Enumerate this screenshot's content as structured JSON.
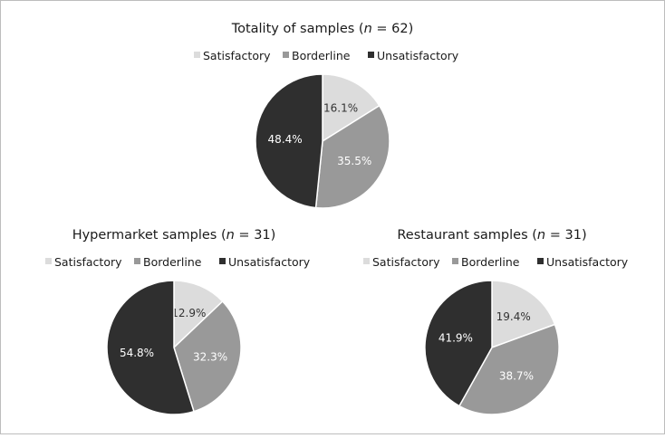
{
  "chart_data": [
    {
      "type": "pie",
      "title": "Totality of samples",
      "n_text": "(n = 62)",
      "n_prefix": "(",
      "n_var": "n",
      "n_suffix": " = 62)",
      "legend_position": "top",
      "slices": [
        {
          "label": "Satisfactory",
          "value": 16.1,
          "value_text": "16.1%",
          "color": "#dcdcdc"
        },
        {
          "label": "Borderline",
          "value": 35.5,
          "value_text": "35.5%",
          "color": "#999999"
        },
        {
          "label": "Unsatisfactory",
          "value": 48.4,
          "value_text": "48.4%",
          "color": "#2f2f2f"
        }
      ]
    },
    {
      "type": "pie",
      "title": "Hypermarket samples",
      "n_text": "(n = 31)",
      "n_prefix": "(",
      "n_var": "n",
      "n_suffix": " = 31)",
      "legend_position": "top",
      "slices": [
        {
          "label": "Satisfactory",
          "value": 12.9,
          "value_text": "12.9%",
          "color": "#dcdcdc"
        },
        {
          "label": "Borderline",
          "value": 32.3,
          "value_text": "32.3%",
          "color": "#999999"
        },
        {
          "label": "Unsatisfactory",
          "value": 54.8,
          "value_text": "54.8%",
          "color": "#2f2f2f"
        }
      ]
    },
    {
      "type": "pie",
      "title": "Restaurant samples",
      "n_text": "(n = 31)",
      "n_prefix": "(",
      "n_var": "n",
      "n_suffix": " = 31)",
      "legend_position": "top",
      "slices": [
        {
          "label": "Satisfactory",
          "value": 19.4,
          "value_text": "19.4%",
          "color": "#dcdcdc"
        },
        {
          "label": "Borderline",
          "value": 38.7,
          "value_text": "38.7%",
          "color": "#999999"
        },
        {
          "label": "Unsatisfactory",
          "value": 41.9,
          "value_text": "41.9%",
          "color": "#2f2f2f"
        }
      ]
    }
  ]
}
